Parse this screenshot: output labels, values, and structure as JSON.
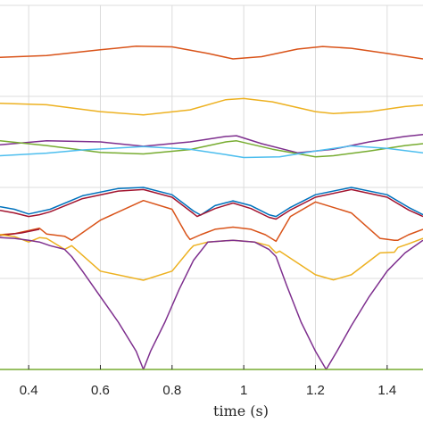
{
  "chart_data": {
    "type": "line",
    "title": "",
    "xlabel": "time (s)",
    "ylabel": "",
    "xlim": [
      0.32,
      1.5
    ],
    "ylim": [
      0,
      1
    ],
    "x_ticks": [
      0.4,
      0.6,
      0.8,
      1,
      1.2,
      1.4
    ],
    "x_tick_labels": [
      "0.4",
      "0.6",
      "0.8",
      "1",
      "1.2",
      "1.4"
    ],
    "grid": true,
    "series": [
      {
        "color": "#d95319",
        "x": [
          0.32,
          0.45,
          0.6,
          0.7,
          0.8,
          0.9,
          0.97,
          1.05,
          1.15,
          1.22,
          1.3,
          1.4,
          1.5
        ],
        "y": [
          0.857,
          0.862,
          0.878,
          0.888,
          0.886,
          0.868,
          0.853,
          0.859,
          0.88,
          0.887,
          0.882,
          0.868,
          0.853
        ]
      },
      {
        "color": "#edb120",
        "x": [
          0.32,
          0.45,
          0.6,
          0.72,
          0.85,
          0.95,
          1.0,
          1.08,
          1.2,
          1.25,
          1.35,
          1.45,
          1.5
        ],
        "y": [
          0.731,
          0.727,
          0.708,
          0.699,
          0.713,
          0.741,
          0.744,
          0.735,
          0.708,
          0.703,
          0.708,
          0.722,
          0.726
        ]
      },
      {
        "color": "#7e2f8e",
        "x": [
          0.32,
          0.45,
          0.6,
          0.72,
          0.85,
          0.95,
          0.98,
          1.05,
          1.15,
          1.25,
          1.35,
          1.45,
          1.5
        ],
        "y": [
          0.617,
          0.628,
          0.625,
          0.613,
          0.625,
          0.64,
          0.642,
          0.62,
          0.595,
          0.605,
          0.625,
          0.64,
          0.645
        ]
      },
      {
        "color": "#77ac30",
        "x": [
          0.32,
          0.45,
          0.6,
          0.72,
          0.85,
          0.95,
          0.98,
          1.08,
          1.2,
          1.25,
          1.35,
          1.45,
          1.5
        ],
        "y": [
          0.628,
          0.615,
          0.596,
          0.592,
          0.604,
          0.625,
          0.628,
          0.605,
          0.584,
          0.587,
          0.6,
          0.615,
          0.62
        ]
      },
      {
        "color": "#4dbeee",
        "x": [
          0.32,
          0.45,
          0.55,
          0.72,
          0.85,
          0.95,
          1.0,
          1.1,
          1.2,
          1.3,
          1.4,
          1.5
        ],
        "y": [
          0.587,
          0.594,
          0.603,
          0.612,
          0.605,
          0.59,
          0.582,
          0.584,
          0.6,
          0.614,
          0.607,
          0.595
        ]
      },
      {
        "color": "#0072bd",
        "x": [
          0.32,
          0.36,
          0.4,
          0.46,
          0.55,
          0.65,
          0.72,
          0.8,
          0.86,
          0.88,
          0.92,
          0.97,
          1.02,
          1.07,
          1.09,
          1.13,
          1.2,
          1.3,
          1.4,
          1.46,
          1.5
        ],
        "y": [
          0.447,
          0.44,
          0.427,
          0.44,
          0.477,
          0.497,
          0.5,
          0.48,
          0.435,
          0.424,
          0.45,
          0.463,
          0.45,
          0.425,
          0.42,
          0.445,
          0.48,
          0.5,
          0.48,
          0.445,
          0.425
        ]
      },
      {
        "color": "#a2142f",
        "x": [
          0.32,
          0.36,
          0.4,
          0.43,
          0.46,
          0.55,
          0.65,
          0.72,
          0.8,
          0.86,
          0.87,
          0.92,
          0.97,
          1.02,
          1.07,
          1.09,
          1.13,
          1.2,
          1.3,
          1.4,
          1.46,
          1.5
        ],
        "y": [
          0.437,
          0.43,
          0.42,
          0.425,
          0.433,
          0.469,
          0.49,
          0.494,
          0.473,
          0.428,
          0.42,
          0.442,
          0.457,
          0.442,
          0.418,
          0.413,
          0.438,
          0.473,
          0.494,
          0.473,
          0.438,
          0.42
        ]
      },
      {
        "color": "#d95319",
        "x": [
          0.32,
          0.36,
          0.43,
          0.45,
          0.5,
          0.52,
          0.6,
          0.72,
          0.8,
          0.84,
          0.85,
          0.88,
          0.92,
          0.97,
          1.02,
          1.06,
          1.08,
          1.09,
          1.13,
          1.2,
          1.3,
          1.38,
          1.42,
          1.43,
          1.46,
          1.5
        ],
        "y": [
          0.37,
          0.373,
          0.388,
          0.372,
          0.366,
          0.355,
          0.41,
          0.464,
          0.44,
          0.37,
          0.357,
          0.37,
          0.385,
          0.391,
          0.385,
          0.37,
          0.358,
          0.352,
          0.42,
          0.46,
          0.43,
          0.36,
          0.355,
          0.355,
          0.37,
          0.385
        ]
      },
      {
        "color": "#a2142f",
        "x": [
          0.32,
          0.38,
          0.43
        ],
        "y": [
          0.368,
          0.375,
          0.385
        ]
      },
      {
        "color": "#edb120",
        "x": [
          0.32,
          0.36,
          0.4,
          0.43,
          0.45,
          0.5,
          0.52,
          0.6,
          0.72,
          0.8,
          0.85,
          0.86,
          0.9,
          0.97,
          1.03,
          1.07,
          1.09,
          1.1,
          1.2,
          1.25,
          1.3,
          1.38,
          1.42,
          1.43,
          1.46,
          1.5
        ],
        "y": [
          0.37,
          0.365,
          0.35,
          0.362,
          0.36,
          0.33,
          0.34,
          0.27,
          0.245,
          0.27,
          0.33,
          0.34,
          0.35,
          0.355,
          0.35,
          0.34,
          0.32,
          0.325,
          0.26,
          0.246,
          0.26,
          0.32,
          0.322,
          0.335,
          0.345,
          0.36
        ]
      },
      {
        "color": "#7e2f8e",
        "x": [
          0.32,
          0.36,
          0.4,
          0.43,
          0.46,
          0.5,
          0.52,
          0.55,
          0.6,
          0.65,
          0.7,
          0.72,
          0.74,
          0.78,
          0.82,
          0.86,
          0.9,
          0.97,
          1.03,
          1.07,
          1.09,
          1.12,
          1.16,
          1.2,
          1.23,
          1.26,
          1.3,
          1.35,
          1.4,
          1.45,
          1.5
        ],
        "y": [
          0.362,
          0.36,
          0.355,
          0.35,
          0.34,
          0.33,
          0.31,
          0.27,
          0.2,
          0.13,
          0.05,
          0.0,
          0.05,
          0.13,
          0.22,
          0.3,
          0.35,
          0.355,
          0.35,
          0.33,
          0.31,
          0.23,
          0.13,
          0.05,
          0.0,
          0.05,
          0.12,
          0.2,
          0.27,
          0.32,
          0.355
        ]
      },
      {
        "color": "#77ac30",
        "x": [
          0.32,
          1.5
        ],
        "y": [
          0.0,
          0.0
        ]
      }
    ]
  }
}
